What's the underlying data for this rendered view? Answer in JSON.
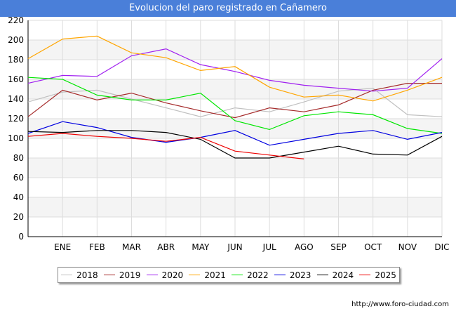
{
  "header": {
    "title": "Evolucion del paro registrado en Cañamero"
  },
  "footer": {
    "url": "http://www.foro-ciudad.com"
  },
  "chart_data": {
    "type": "line",
    "title": "Evolucion del paro registrado en Cañamero",
    "xlabel": "",
    "ylabel": "",
    "ylim": [
      0,
      220
    ],
    "yticks": [
      0,
      20,
      40,
      60,
      80,
      100,
      120,
      140,
      160,
      180,
      200,
      220
    ],
    "grid": true,
    "legend_position": "bottom",
    "categories": [
      "",
      "ENE",
      "FEB",
      "MAR",
      "ABR",
      "MAY",
      "JUN",
      "JUL",
      "AGO",
      "SEP",
      "OCT",
      "NOV",
      "DIC"
    ],
    "series": [
      {
        "name": "2018",
        "color": "#c0c0c0",
        "values": [
          137,
          147,
          149,
          140,
          131,
          122,
          131,
          127,
          137,
          148,
          151,
          124,
          122
        ]
      },
      {
        "name": "2019",
        "color": "#a52a2a",
        "values": [
          122,
          149,
          139,
          146,
          136,
          128,
          121,
          131,
          127,
          134,
          149,
          156,
          156
        ]
      },
      {
        "name": "2020",
        "color": "#a020f0",
        "values": [
          156,
          164,
          163,
          184,
          191,
          175,
          168,
          159,
          154,
          151,
          148,
          151,
          181
        ]
      },
      {
        "name": "2021",
        "color": "#ffa500",
        "values": [
          181,
          201,
          204,
          187,
          182,
          169,
          173,
          152,
          142,
          144,
          138,
          149,
          162
        ]
      },
      {
        "name": "2022",
        "color": "#00e600",
        "values": [
          162,
          160,
          144,
          139,
          139,
          146,
          118,
          109,
          123,
          127,
          124,
          110,
          105
        ]
      },
      {
        "name": "2023",
        "color": "#0000e0",
        "values": [
          105,
          117,
          111,
          101,
          96,
          101,
          108,
          93,
          99,
          105,
          108,
          99,
          106
        ]
      },
      {
        "name": "2024",
        "color": "#000000",
        "values": [
          107,
          106,
          108,
          108,
          106,
          99,
          80,
          80,
          86,
          92,
          84,
          83,
          102
        ]
      },
      {
        "name": "2025",
        "color": "#ee0000",
        "values": [
          102,
          105,
          102,
          100,
          97,
          101,
          87,
          83,
          79,
          null,
          null,
          null,
          null
        ]
      }
    ]
  }
}
